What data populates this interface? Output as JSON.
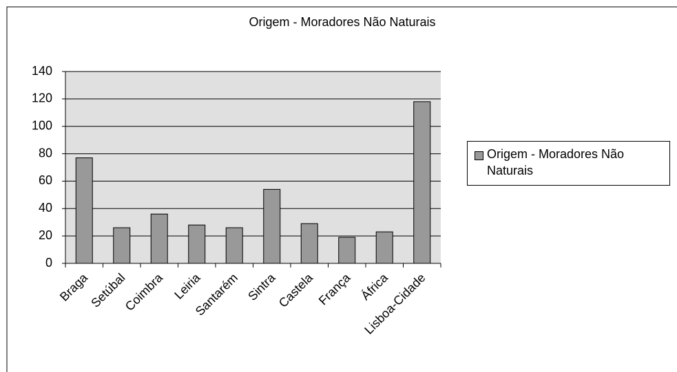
{
  "chart_data": {
    "type": "bar",
    "title": "Origem - Moradores Não Naturais",
    "categories": [
      "Braga",
      "Setúbal",
      "Coimbra",
      "Leiria",
      "Santarém",
      "Sintra",
      "Castela",
      "França",
      "África",
      "Lisboa-Cidade"
    ],
    "series": [
      {
        "name": "Origem - Moradores Não Naturais",
        "color": "#999999",
        "values": [
          77,
          26,
          36,
          28,
          26,
          54,
          29,
          19,
          23,
          118
        ]
      }
    ],
    "ylim": [
      0,
      140
    ],
    "yticks": [
      0,
      20,
      40,
      60,
      80,
      100,
      120,
      140
    ],
    "grid": true,
    "legend": "right"
  }
}
